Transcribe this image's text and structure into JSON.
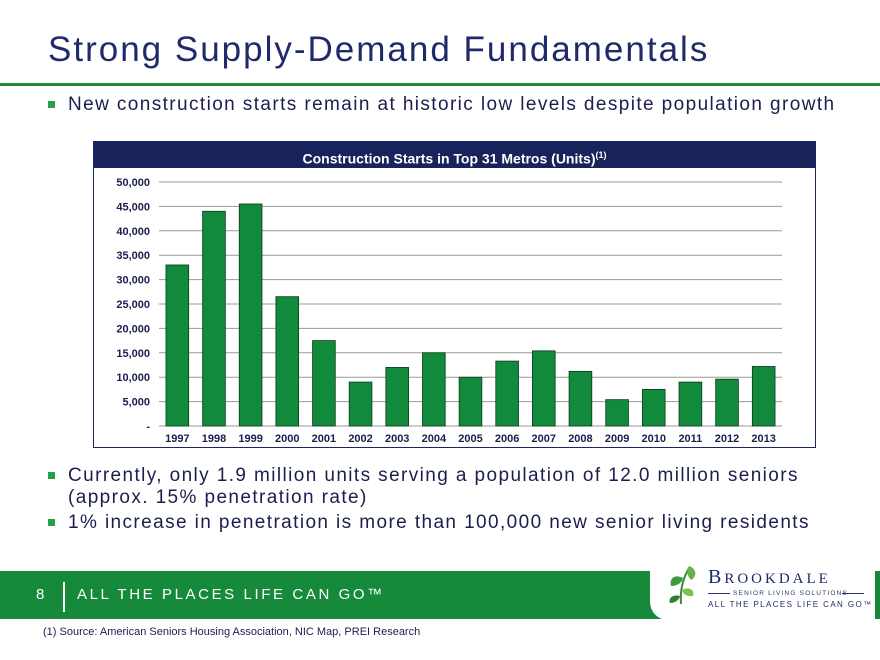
{
  "slide": {
    "title": "Strong Supply-Demand Fundamentals",
    "bullets": [
      "New construction starts remain at historic low levels despite population growth",
      "Currently, only 1.9 million units serving a population of 12.0 million seniors (approx. 15% penetration rate)",
      "1% increase in penetration is more than 100,000 new senior living residents"
    ]
  },
  "chart_title": "Construction Starts in Top 31 Metros (Units)",
  "chart_title_sup": "(1)",
  "chart_data": {
    "type": "bar",
    "title": "Construction Starts in Top 31 Metros (Units)(1)",
    "categories": [
      "1997",
      "1998",
      "1999",
      "2000",
      "2001",
      "2002",
      "2003",
      "2004",
      "2005",
      "2006",
      "2007",
      "2008",
      "2009",
      "2010",
      "2011",
      "2012",
      "2013"
    ],
    "values": [
      33000,
      44000,
      45500,
      26500,
      17500,
      9000,
      12000,
      15000,
      10000,
      13300,
      15400,
      11200,
      5400,
      7500,
      9000,
      9600,
      12200
    ],
    "ylim": [
      0,
      50000
    ],
    "yticks": [
      0,
      5000,
      10000,
      15000,
      20000,
      25000,
      30000,
      35000,
      40000,
      45000,
      50000
    ],
    "ytick_labels": [
      "-",
      "5,000",
      "10,000",
      "15,000",
      "20,000",
      "25,000",
      "30,000",
      "35,000",
      "40,000",
      "45,000",
      "50,000"
    ],
    "xlabel": "",
    "ylabel": "",
    "grid": true,
    "bar_color": "#128a3c"
  },
  "footer": {
    "page_number": "8",
    "tagline": "ALL THE PLACES LIFE CAN GO™",
    "brand_color": "#168a3a"
  },
  "logo": {
    "name_initial_b": "B",
    "name_rest": "ROOKDALE",
    "subtitle": "SENIOR LIVING SOLUTIONS",
    "tagline": "ALL THE PLACES LIFE CAN GO™"
  },
  "footnote": "(1) Source: American Seniors Housing Association, NIC Map, PREI Research"
}
